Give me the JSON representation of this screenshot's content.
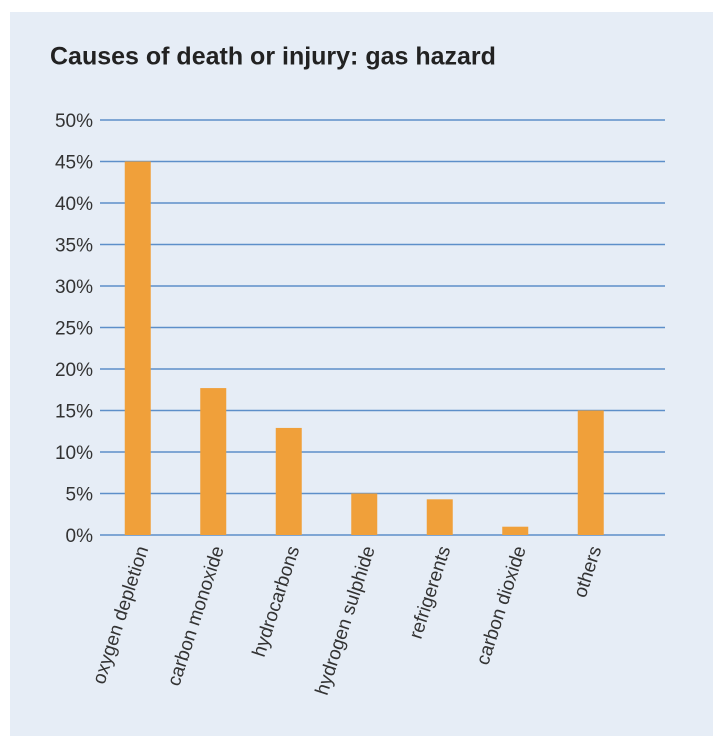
{
  "chart_data": {
    "type": "bar",
    "title": "Causes of death or injury: gas hazard",
    "categories": [
      "oxygen depletion",
      "carbon monoxide",
      "hydrocarbons",
      "hydrogen sulphide",
      "refrigerents",
      "carbon dioxide",
      "others"
    ],
    "values": [
      45,
      17.7,
      12.9,
      5,
      4.3,
      1,
      15
    ],
    "color": "#f0a03a",
    "ylim": [
      0,
      50
    ],
    "yticks": [
      {
        "value": 0,
        "label": "0%"
      },
      {
        "value": 5,
        "label": "5%"
      },
      {
        "value": 10,
        "label": "10%"
      },
      {
        "value": 15,
        "label": "15%"
      },
      {
        "value": 20,
        "label": "20%"
      },
      {
        "value": 25,
        "label": "25%"
      },
      {
        "value": 30,
        "label": "30%"
      },
      {
        "value": 35,
        "label": "35%"
      },
      {
        "value": 40,
        "label": "40%"
      },
      {
        "value": 45,
        "label": "45%"
      },
      {
        "value": 50,
        "label": "50%"
      }
    ],
    "grid": true
  }
}
